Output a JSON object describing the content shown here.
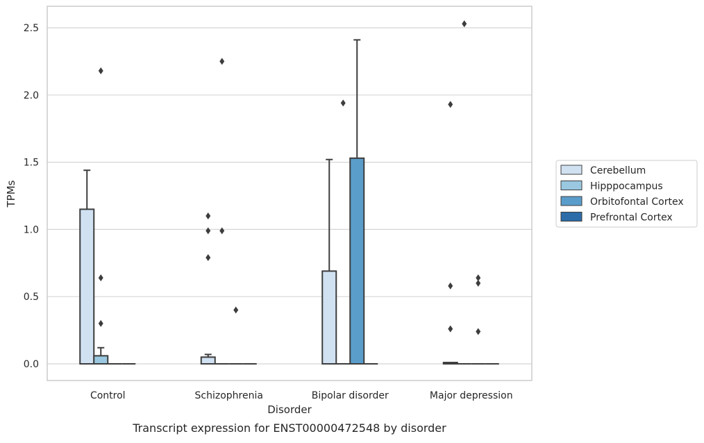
{
  "chart_data": {
    "type": "boxplot",
    "caption": "Transcript expression for ENST00000472548 by disorder",
    "xlabel": "Disorder",
    "ylabel": "TPMs",
    "ylim": [
      -0.12,
      2.66
    ],
    "yticks": [
      0.0,
      0.5,
      1.0,
      1.5,
      2.0,
      2.5
    ],
    "ytick_labels": [
      "0.0",
      "0.5",
      "1.0",
      "1.5",
      "2.0",
      "2.5"
    ],
    "grid": "horizontal",
    "legend_position": "right",
    "categories": [
      "Control",
      "Schizophrenia",
      "Bipolar disorder",
      "Major depression"
    ],
    "series": [
      {
        "name": "Cerebellum",
        "color": "#d0e1f2",
        "boxes": [
          {
            "q1": 0.0,
            "median": 0.0,
            "q3": 1.15,
            "whisker_low": 0.0,
            "whisker_high": 1.44,
            "outliers": []
          },
          {
            "q1": 0.0,
            "median": 0.0,
            "q3": 0.05,
            "whisker_low": 0.0,
            "whisker_high": 0.07,
            "outliers": [
              0.79,
              0.99,
              1.1
            ]
          },
          {
            "q1": 0.0,
            "median": 0.0,
            "q3": 0.69,
            "whisker_low": 0.0,
            "whisker_high": 1.52,
            "outliers": []
          },
          {
            "q1": 0.0,
            "median": 0.0,
            "q3": 0.01,
            "whisker_low": 0.0,
            "whisker_high": 0.01,
            "outliers": [
              0.26,
              0.58,
              1.93
            ]
          }
        ]
      },
      {
        "name": "Hipppocampus",
        "color": "#9ac8e0",
        "boxes": [
          {
            "q1": 0.0,
            "median": 0.0,
            "q3": 0.06,
            "whisker_low": 0.0,
            "whisker_high": 0.12,
            "outliers": [
              0.3,
              0.64,
              2.18
            ]
          },
          {
            "q1": 0.0,
            "median": 0.0,
            "q3": 0.0,
            "whisker_low": 0.0,
            "whisker_high": 0.0,
            "outliers": [
              0.99,
              2.25
            ]
          },
          {
            "q1": 0.0,
            "median": 0.0,
            "q3": 0.0,
            "whisker_low": 0.0,
            "whisker_high": 0.0,
            "outliers": [
              1.94
            ]
          },
          {
            "q1": 0.0,
            "median": 0.0,
            "q3": 0.0,
            "whisker_low": 0.0,
            "whisker_high": 0.0,
            "outliers": [
              2.53
            ]
          }
        ]
      },
      {
        "name": "Orbitofontal Cortex",
        "color": "#5a9dcb",
        "boxes": [
          {
            "q1": 0.0,
            "median": 0.0,
            "q3": 0.0,
            "whisker_low": 0.0,
            "whisker_high": 0.0,
            "outliers": []
          },
          {
            "q1": 0.0,
            "median": 0.0,
            "q3": 0.0,
            "whisker_low": 0.0,
            "whisker_high": 0.0,
            "outliers": [
              0.4
            ]
          },
          {
            "q1": 0.0,
            "median": 0.0,
            "q3": 1.53,
            "whisker_low": 0.0,
            "whisker_high": 2.41,
            "outliers": []
          },
          {
            "q1": 0.0,
            "median": 0.0,
            "q3": 0.0,
            "whisker_low": 0.0,
            "whisker_high": 0.0,
            "outliers": [
              0.24,
              0.6,
              0.64
            ]
          }
        ]
      },
      {
        "name": "Prefrontal Cortex",
        "color": "#2c6ca8",
        "boxes": [
          {
            "q1": 0.0,
            "median": 0.0,
            "q3": 0.0,
            "whisker_low": 0.0,
            "whisker_high": 0.0,
            "outliers": []
          },
          {
            "q1": 0.0,
            "median": 0.0,
            "q3": 0.0,
            "whisker_low": 0.0,
            "whisker_high": 0.0,
            "outliers": []
          },
          {
            "q1": 0.0,
            "median": 0.0,
            "q3": 0.0,
            "whisker_low": 0.0,
            "whisker_high": 0.0,
            "outliers": []
          },
          {
            "q1": 0.0,
            "median": 0.0,
            "q3": 0.0,
            "whisker_low": 0.0,
            "whisker_high": 0.0,
            "outliers": []
          }
        ]
      }
    ],
    "colors": {
      "box_edge": "#3d3d3d",
      "grid": "#d5d5d5",
      "frame": "#cccccc",
      "outlier": "#3d3d3d"
    }
  }
}
